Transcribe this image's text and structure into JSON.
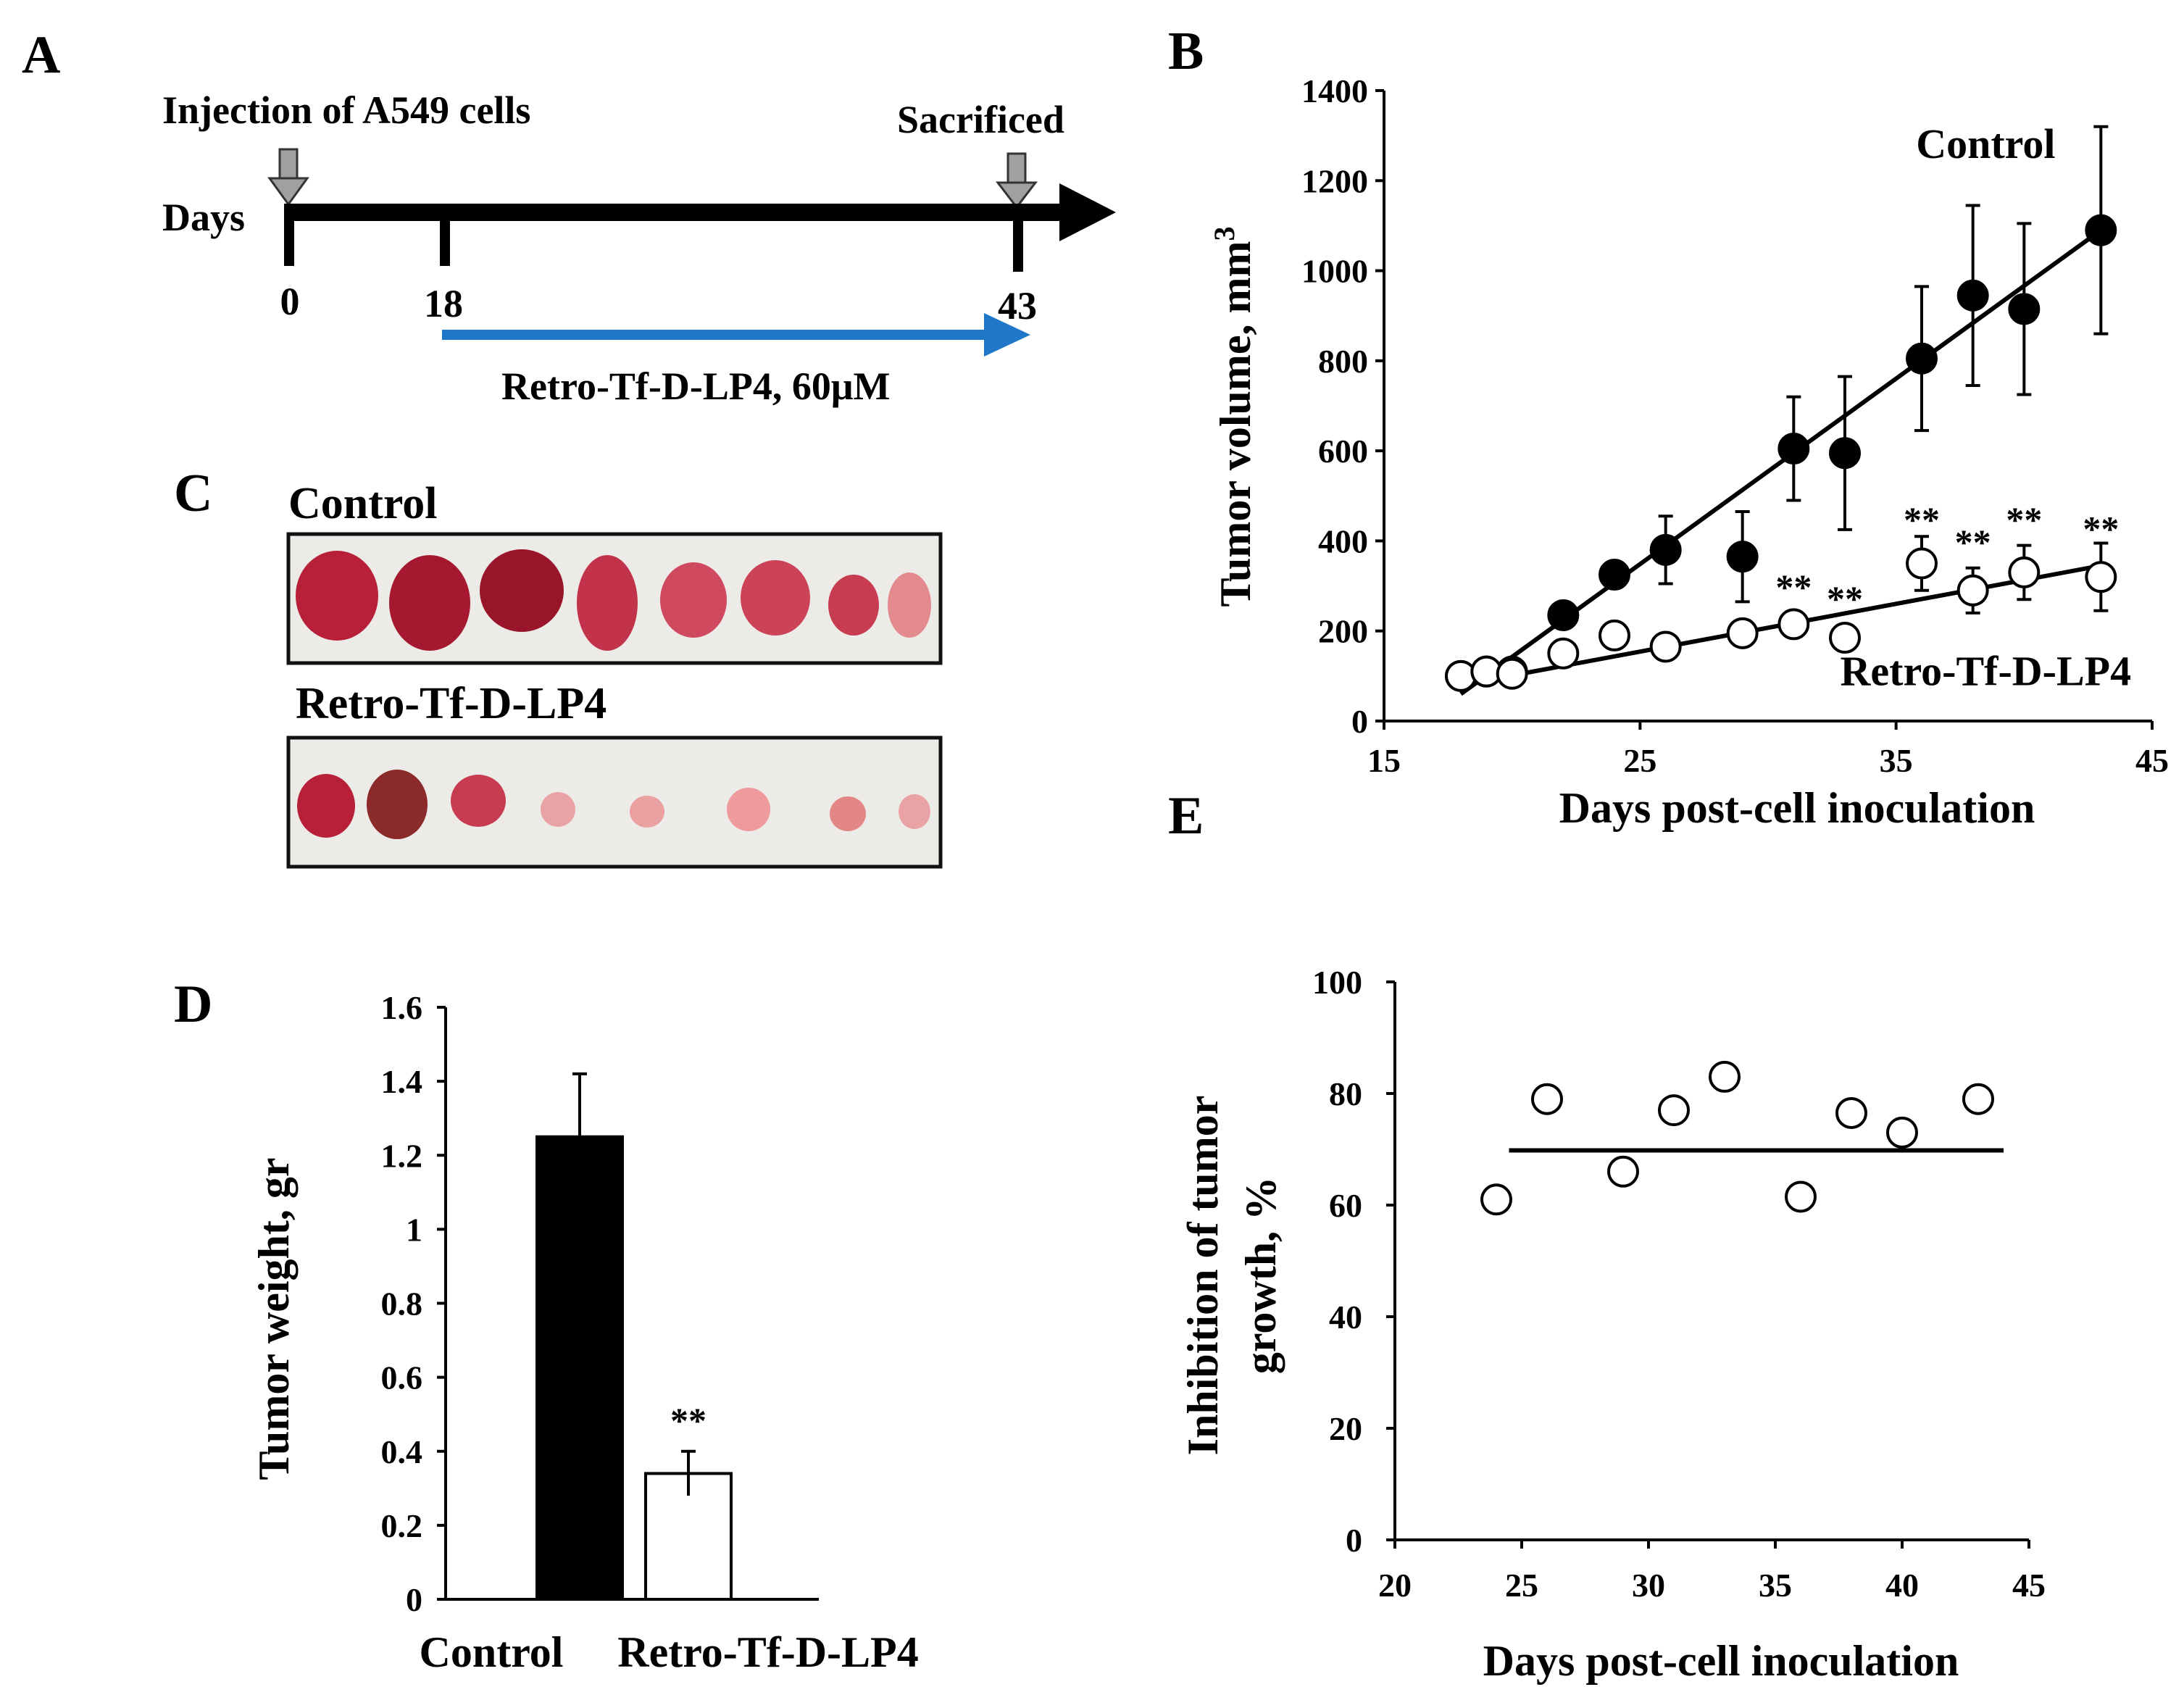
{
  "panels": {
    "A": {
      "letter": "A",
      "injection_label": "Injection of A549 cells",
      "sacrificed_label": "Sacrificed",
      "days_label": "Days",
      "day_0": "0",
      "day_18": "18",
      "day_43": "43",
      "treatment_label": "Retro-Tf-D-LP4, 60μM",
      "colors": {
        "timeline": "#000000",
        "treatment_arrow": "#1f77c9",
        "marker_arrow": "#a0a0a0"
      }
    },
    "C": {
      "letter": "C",
      "control_label": "Control",
      "treated_label": "Retro-Tf-D-LP4"
    },
    "B": {
      "letter": "B"
    },
    "D": {
      "letter": "D"
    },
    "E": {
      "letter": "E"
    }
  },
  "chart_data": [
    {
      "panel": "B",
      "type": "scatter",
      "xlabel": "Days post-cell inoculation",
      "ylabel": "Tumor volume, mm³",
      "ylabel_main": "Tumor volume, mm",
      "ylabel_sup": "3",
      "xlim": [
        15,
        45
      ],
      "ylim": [
        0,
        1400
      ],
      "xticks": [
        15,
        25,
        35,
        45
      ],
      "yticks": [
        0,
        200,
        400,
        600,
        800,
        1000,
        1200,
        1400
      ],
      "series": [
        {
          "name": "Control",
          "marker": "filled-circle",
          "x": [
            18,
            19,
            20,
            22,
            24,
            26,
            29,
            31,
            33,
            36,
            38,
            40,
            43
          ],
          "y": [
            100,
            110,
            110,
            235,
            325,
            380,
            365,
            605,
            595,
            805,
            945,
            915,
            1090
          ],
          "err": [
            0,
            0,
            0,
            0,
            0,
            75,
            100,
            115,
            170,
            160,
            200,
            190,
            230
          ],
          "trend": {
            "x": [
              18,
              43
            ],
            "y": [
              60,
              1090
            ]
          }
        },
        {
          "name": "Retro-Tf-D-LP4",
          "marker": "open-circle",
          "x": [
            18,
            19,
            20,
            22,
            24,
            26,
            29,
            31,
            33,
            36,
            38,
            40,
            43
          ],
          "y": [
            100,
            110,
            105,
            150,
            190,
            165,
            195,
            215,
            185,
            350,
            290,
            330,
            320
          ],
          "err": [
            0,
            0,
            0,
            0,
            0,
            0,
            0,
            0,
            0,
            60,
            50,
            60,
            75
          ],
          "trend": {
            "x": [
              18,
              43
            ],
            "y": [
              80,
              345
            ]
          }
        }
      ],
      "annotations": [
        {
          "text": "**",
          "x": 31,
          "y": 270
        },
        {
          "text": "**",
          "x": 33,
          "y": 245
        },
        {
          "text": "**",
          "x": 36,
          "y": 420
        },
        {
          "text": "**",
          "x": 38,
          "y": 370
        },
        {
          "text": "**",
          "x": 40,
          "y": 420
        },
        {
          "text": "**",
          "x": 43,
          "y": 400
        }
      ],
      "series_labels": [
        {
          "text": "Control",
          "x": 38.5,
          "y": 1250
        },
        {
          "text": "Retro-Tf-D-LP4",
          "x": 38.5,
          "y": 80
        }
      ]
    },
    {
      "panel": "D",
      "type": "bar",
      "ylabel": "Tumor weight, gr",
      "categories": [
        "Control",
        "Retro-Tf-D-LP4"
      ],
      "values": [
        1.25,
        0.34
      ],
      "errors": [
        0.17,
        0.06
      ],
      "colors": [
        "#000000",
        "#ffffff"
      ],
      "ylim": [
        0,
        1.6
      ],
      "yticks": [
        "0",
        "0.2",
        "0.4",
        "0.6",
        "0.8",
        "1",
        "1.2",
        "1.4",
        "1.6"
      ],
      "annotations": [
        {
          "text": "**",
          "category": "Retro-Tf-D-LP4",
          "y": 0.45
        }
      ]
    },
    {
      "panel": "E",
      "type": "scatter",
      "xlabel": "Days post-cell inoculation",
      "ylabel_line1": "Inhibition of tumor",
      "ylabel_line2": "growth, %",
      "xlim": [
        20,
        45
      ],
      "ylim": [
        0,
        100
      ],
      "xticks": [
        20,
        25,
        30,
        35,
        40,
        45
      ],
      "yticks": [
        0,
        20,
        40,
        60,
        80,
        100
      ],
      "series": [
        {
          "name": "Inhibition",
          "marker": "open-circle",
          "x": [
            24,
            26,
            29,
            31,
            33,
            36,
            38,
            40,
            43
          ],
          "y": [
            61,
            79,
            66,
            77,
            83,
            61.5,
            76.5,
            73,
            79
          ]
        }
      ],
      "mean_line": {
        "x": [
          24.5,
          44
        ],
        "y": 69.8
      }
    }
  ]
}
